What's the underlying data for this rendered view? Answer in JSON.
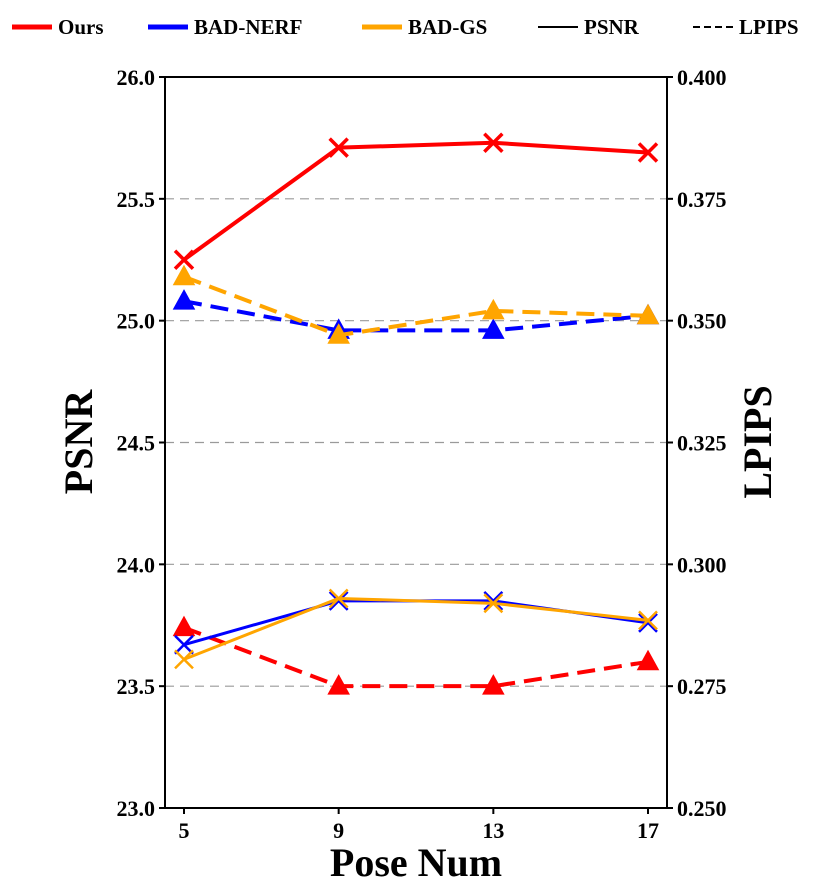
{
  "chart_data": {
    "type": "line",
    "title": "",
    "x": [
      5,
      9,
      13,
      17
    ],
    "xlabel": "Pose Num",
    "ylabel": "PSNR",
    "y2label": "LPIPS",
    "ylim": [
      23.0,
      26.0
    ],
    "y2lim": [
      0.25,
      0.4
    ],
    "yticks": [
      "23.0",
      "23.5",
      "24.0",
      "24.5",
      "25.0",
      "25.5",
      "26.0"
    ],
    "y2ticks": [
      "0.250",
      "0.275",
      "0.300",
      "0.325",
      "0.350",
      "0.375",
      "0.400"
    ],
    "xticks": [
      "5",
      "9",
      "13",
      "17"
    ],
    "grid": "horizontal dashed",
    "legend": {
      "placement": "top",
      "entries": [
        {
          "label": "Ours",
          "color": "#ff0000",
          "style": "solid"
        },
        {
          "label": "BAD-NERF",
          "color": "#0000ff",
          "style": "solid"
        },
        {
          "label": "BAD-GS",
          "color": "#ffa500",
          "style": "solid"
        },
        {
          "label": "PSNR",
          "color": "#000000",
          "style": "solid"
        },
        {
          "label": "LPIPS",
          "color": "#000000",
          "style": "dashed"
        }
      ]
    },
    "series": [
      {
        "name": "Ours PSNR",
        "method": "Ours",
        "metric": "PSNR",
        "axis": "left",
        "color": "#ff0000",
        "values": [
          25.25,
          25.71,
          25.73,
          25.69
        ]
      },
      {
        "name": "BAD-NERF PSNR",
        "method": "BAD-NERF",
        "metric": "PSNR",
        "axis": "left",
        "color": "#0000ff",
        "values": [
          23.67,
          23.85,
          23.85,
          23.76
        ]
      },
      {
        "name": "BAD-GS PSNR",
        "method": "BAD-GS",
        "metric": "PSNR",
        "axis": "left",
        "color": "#ffa500",
        "values": [
          23.61,
          23.86,
          23.84,
          23.77
        ]
      },
      {
        "name": "Ours LPIPS",
        "method": "Ours",
        "metric": "LPIPS",
        "axis": "right",
        "color": "#ff0000",
        "values": [
          0.287,
          0.275,
          0.275,
          0.28
        ]
      },
      {
        "name": "BAD-NERF LPIPS",
        "method": "BAD-NERF",
        "metric": "LPIPS",
        "axis": "right",
        "color": "#0000ff",
        "values": [
          0.354,
          0.348,
          0.348,
          0.351
        ]
      },
      {
        "name": "BAD-GS LPIPS",
        "method": "BAD-GS",
        "metric": "LPIPS",
        "axis": "right",
        "color": "#ffa500",
        "values": [
          0.359,
          0.347,
          0.352,
          0.351
        ]
      }
    ]
  }
}
